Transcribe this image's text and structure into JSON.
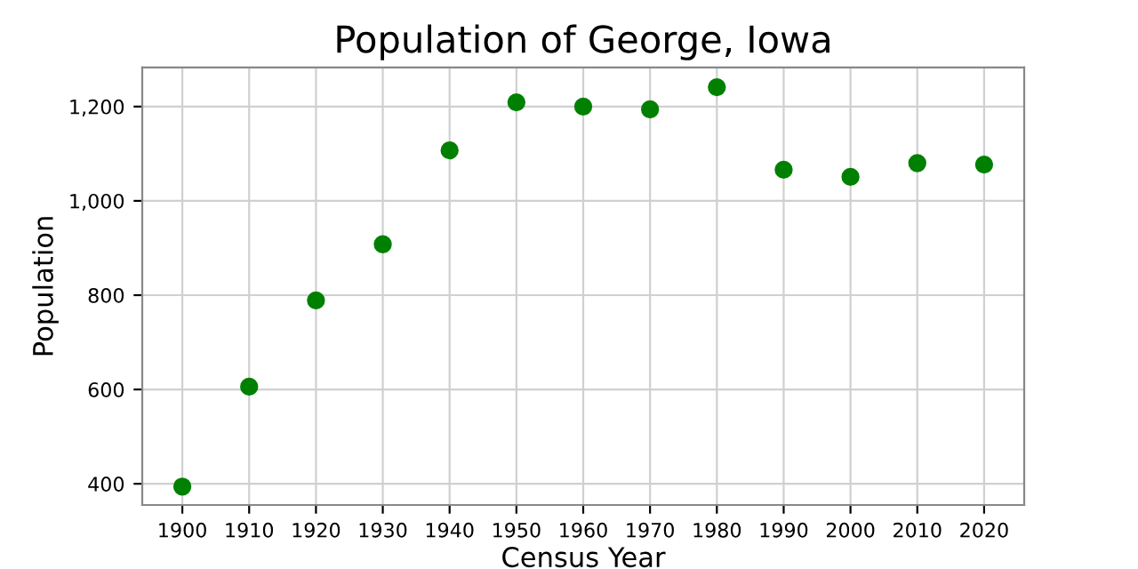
{
  "chart_data": {
    "type": "scatter",
    "title": "Population of George, Iowa",
    "xlabel": "Census Year",
    "ylabel": "Population",
    "x": [
      1900,
      1910,
      1920,
      1930,
      1940,
      1950,
      1960,
      1970,
      1980,
      1990,
      2000,
      2010,
      2020
    ],
    "series": [
      {
        "color": "#008000",
        "values": [
          394,
          606,
          789,
          908,
          1107,
          1209,
          1200,
          1194,
          1241,
          1066,
          1051,
          1080,
          1077
        ]
      }
    ],
    "xlim": [
      1894,
      2026
    ],
    "xticks": [
      1900,
      1910,
      1920,
      1930,
      1940,
      1950,
      1960,
      1970,
      1980,
      1990,
      2000,
      2010,
      2020
    ],
    "ylim": [
      355,
      1283
    ],
    "yticks": [
      {
        "value": 400,
        "label": "400"
      },
      {
        "value": 600,
        "label": "600"
      },
      {
        "value": 800,
        "label": "800"
      },
      {
        "value": 1000,
        "label": "1,000"
      },
      {
        "value": 1200,
        "label": "1,200"
      }
    ],
    "grid": true,
    "marker": "circle"
  }
}
